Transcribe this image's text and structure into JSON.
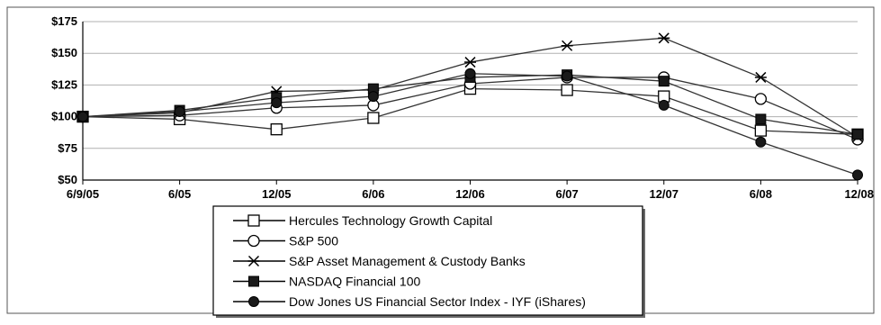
{
  "chart_data": {
    "type": "line",
    "x_categories": [
      "6/9/05",
      "6/05",
      "12/05",
      "6/06",
      "12/06",
      "6/07",
      "12/07",
      "6/08",
      "12/08"
    ],
    "y_ticks": [
      "$175",
      "$150",
      "$125",
      "$100",
      "$75",
      "$50"
    ],
    "ylim": [
      50,
      175
    ],
    "grid": "horizontal",
    "legend_placement": "bottom-center",
    "series": [
      {
        "name": "Hercules Technology Growth Capital",
        "marker": "open-square",
        "values": [
          100,
          98,
          90,
          99,
          122,
          121,
          116,
          89,
          86
        ]
      },
      {
        "name": "S&P 500",
        "marker": "open-circle",
        "values": [
          100,
          101,
          107,
          109,
          126,
          131,
          131,
          114,
          82
        ]
      },
      {
        "name": "S&P Asset Management & Custody Banks",
        "marker": "asterisk",
        "values": [
          100,
          103,
          120,
          121,
          143,
          156,
          162,
          131,
          84
        ]
      },
      {
        "name": "NASDAQ Financial 100",
        "marker": "filled-square",
        "values": [
          100,
          105,
          115,
          122,
          131,
          133,
          128,
          98,
          86
        ]
      },
      {
        "name": "Dow Jones US Financial Sector Index - IYF (iShares)",
        "marker": "filled-circle",
        "values": [
          100,
          104,
          111,
          116,
          134,
          132,
          109,
          80,
          54
        ]
      }
    ]
  }
}
